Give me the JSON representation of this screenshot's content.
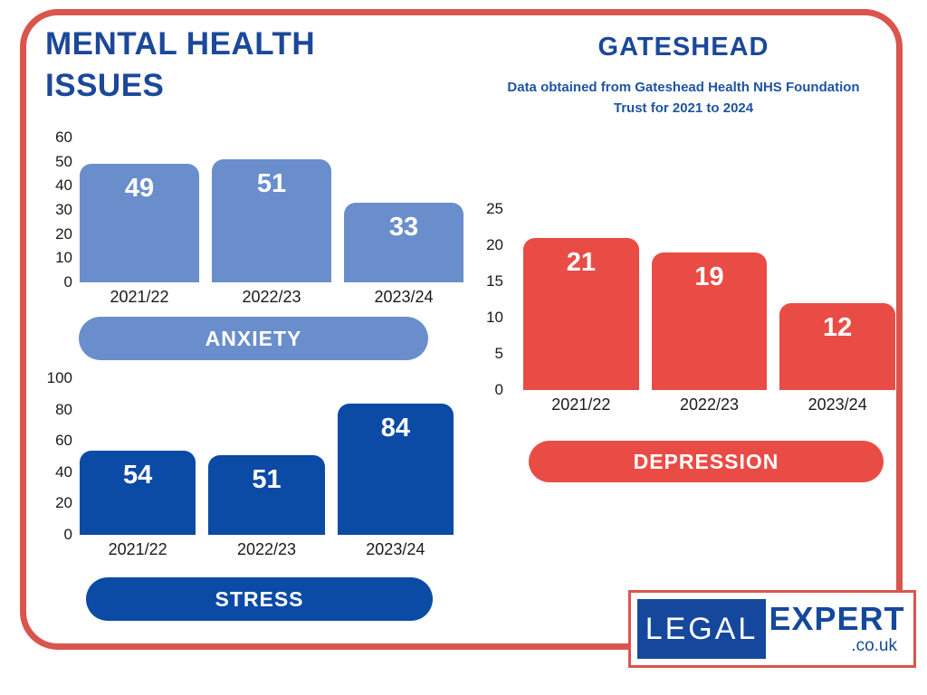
{
  "header": {
    "title": "MENTAL HEALTH ISSUES",
    "location": "GATESHEAD",
    "subtitle": "Data obtained from Gateshead Health NHS Foundation Trust for 2021 to 2024"
  },
  "chart_data": [
    {
      "type": "bar",
      "title": "ANXIETY",
      "categories": [
        "2021/22",
        "2022/23",
        "2023/24"
      ],
      "values": [
        49,
        51,
        33
      ],
      "xlabel": "",
      "ylabel": "",
      "ylim": [
        0,
        60
      ],
      "yticks": [
        0,
        10,
        20,
        30,
        40,
        50,
        60
      ],
      "grid": false,
      "legend_position": "bottom-pill",
      "bar_color": "#6a8ecb",
      "value_label_color": "#ffffff"
    },
    {
      "type": "bar",
      "title": "STRESS",
      "categories": [
        "2021/22",
        "2022/23",
        "2023/24"
      ],
      "values": [
        54,
        51,
        84
      ],
      "xlabel": "",
      "ylabel": "",
      "ylim": [
        0,
        100
      ],
      "yticks": [
        0,
        20,
        40,
        60,
        80,
        100
      ],
      "grid": false,
      "legend_position": "bottom-pill",
      "bar_color": "#0b4aa5",
      "value_label_color": "#ffffff"
    },
    {
      "type": "bar",
      "title": "DEPRESSION",
      "categories": [
        "2021/22",
        "2022/23",
        "2023/24"
      ],
      "values": [
        21,
        19,
        12
      ],
      "xlabel": "",
      "ylabel": "",
      "ylim": [
        0,
        25
      ],
      "yticks": [
        0,
        5,
        10,
        15,
        20,
        25
      ],
      "grid": false,
      "legend_position": "bottom-pill",
      "bar_color": "#e94c45",
      "value_label_color": "#ffffff"
    }
  ],
  "logo": {
    "legal": "LEGAL",
    "expert": "EXPERT",
    "domain": ".co.uk"
  },
  "colors": {
    "frame_border": "#da554e",
    "title_text": "#1b4899",
    "subtitle_text": "#1e549f",
    "axis_text": "#1a1a1a",
    "logo_blue": "#15489c",
    "background": "#ffffff"
  }
}
